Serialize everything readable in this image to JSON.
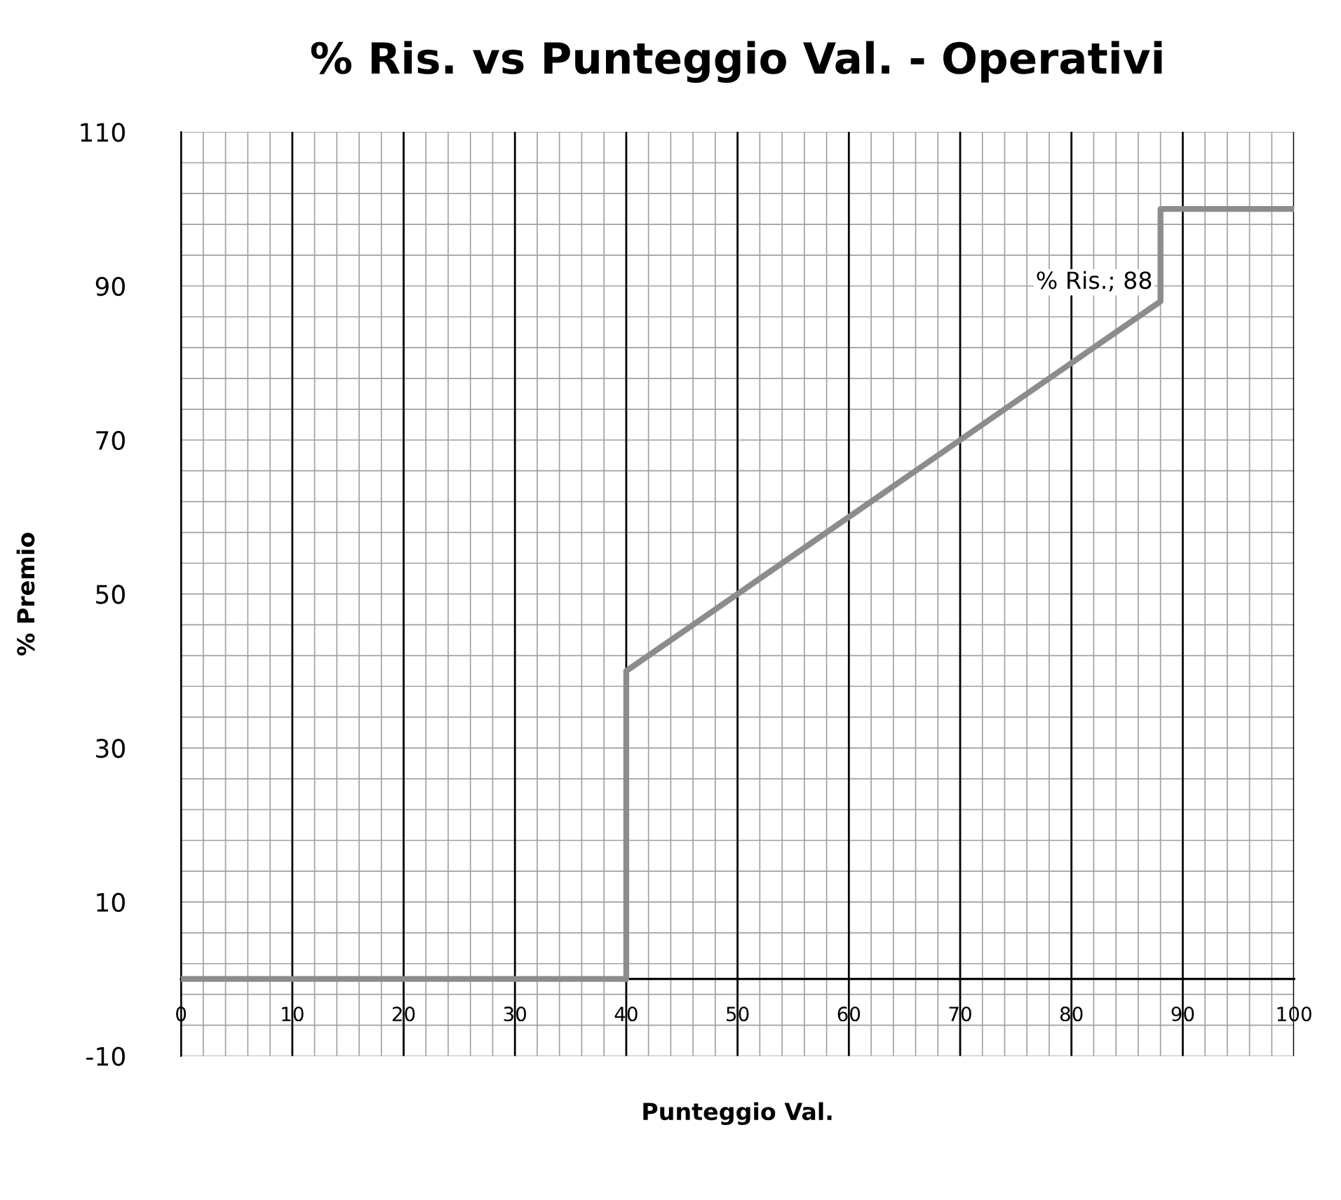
{
  "chart_data": {
    "type": "line",
    "title": "% Ris. vs Punteggio Val. - Operativi",
    "xlabel": "Punteggio Val.",
    "ylabel": "% Premio",
    "series": [
      {
        "color": "#8c8c8c",
        "x": [
          0,
          40,
          40,
          88,
          88,
          100
        ],
        "values": [
          0,
          0,
          40,
          88,
          100,
          100
        ]
      }
    ],
    "annotations": [
      {
        "text": "% Ris.; 88",
        "x": 88,
        "y": 88
      }
    ],
    "xlim": [
      0,
      100
    ],
    "xticks": [
      0,
      10,
      20,
      30,
      40,
      50,
      60,
      70,
      80,
      90,
      100
    ],
    "ylim": [
      -10,
      110
    ],
    "yticks": [
      -10,
      10,
      30,
      50,
      70,
      90,
      110
    ],
    "grid": true,
    "line_style": "solid"
  }
}
